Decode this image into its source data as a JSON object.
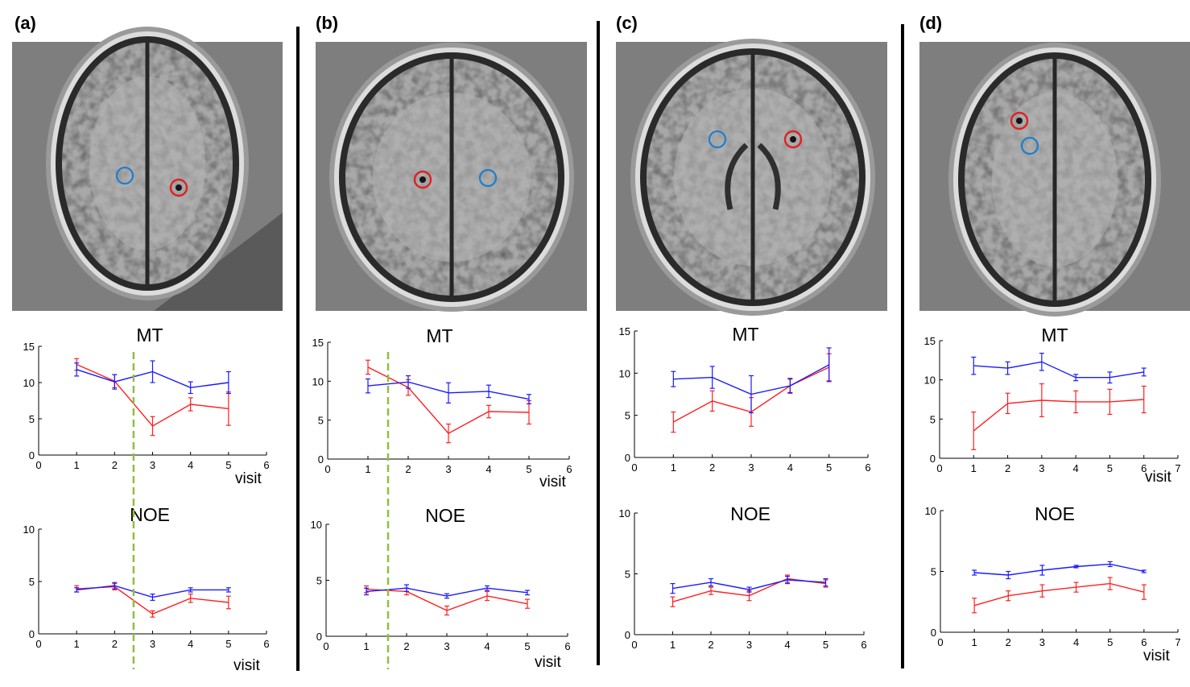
{
  "panels": [
    {
      "label": "(a)"
    },
    {
      "label": "(b)"
    },
    {
      "label": "(c)"
    },
    {
      "label": "(d)"
    }
  ],
  "colors": {
    "series_red": "#ff2020",
    "series_blue": "#1a1aff",
    "onset_line": "#8fbf3f",
    "roi_red": "#e02020",
    "roi_blue": "#1a7fd0"
  },
  "chart_data": [
    {
      "panel": "(a)",
      "type": "line",
      "title": "MT",
      "xlabel": "visit",
      "ylabel": "",
      "xlim": [
        0,
        6
      ],
      "ylim": [
        0,
        15
      ],
      "xticks": [
        0,
        1,
        2,
        3,
        4,
        5,
        6
      ],
      "yticks": [
        0,
        5,
        10,
        15
      ],
      "grid": false,
      "x": [
        1,
        2,
        3,
        4,
        5
      ],
      "series": [
        {
          "color": "red",
          "values": [
            12.5,
            10.2,
            4.0,
            7.0,
            6.4
          ],
          "error": [
            0.8,
            0.9,
            1.3,
            0.9,
            2.3
          ]
        },
        {
          "color": "blue",
          "values": [
            11.8,
            10.1,
            11.5,
            9.3,
            10.0
          ],
          "error": [
            0.9,
            1.0,
            1.5,
            0.8,
            1.5
          ]
        }
      ],
      "vline_x": 2.5
    },
    {
      "panel": "(a)",
      "type": "line",
      "title": "NOE",
      "xlabel": "visit",
      "ylabel": "",
      "xlim": [
        0,
        6
      ],
      "ylim": [
        0,
        10
      ],
      "xticks": [
        0,
        1,
        2,
        3,
        4,
        5,
        6
      ],
      "yticks": [
        0,
        5,
        10
      ],
      "grid": false,
      "x": [
        1,
        2,
        3,
        4,
        5
      ],
      "series": [
        {
          "color": "red",
          "values": [
            4.3,
            4.5,
            1.9,
            3.4,
            3.0
          ],
          "error": [
            0.3,
            0.3,
            0.3,
            0.4,
            0.6
          ]
        },
        {
          "color": "blue",
          "values": [
            4.2,
            4.6,
            3.5,
            4.2,
            4.2
          ],
          "error": [
            0.2,
            0.3,
            0.3,
            0.2,
            0.2
          ]
        }
      ],
      "vline_x": 2.5
    },
    {
      "panel": "(b)",
      "type": "line",
      "title": "MT",
      "xlabel": "visit",
      "ylabel": "",
      "xlim": [
        0,
        6
      ],
      "ylim": [
        0,
        15
      ],
      "xticks": [
        0,
        1,
        2,
        3,
        4,
        5,
        6
      ],
      "yticks": [
        0,
        5,
        10,
        15
      ],
      "grid": false,
      "x": [
        1,
        2,
        3,
        4,
        5
      ],
      "series": [
        {
          "color": "red",
          "values": [
            11.8,
            9.2,
            3.3,
            6.1,
            6.0
          ],
          "error": [
            0.9,
            1.0,
            1.2,
            0.8,
            1.5
          ]
        },
        {
          "color": "blue",
          "values": [
            9.4,
            9.9,
            8.5,
            8.7,
            7.7
          ],
          "error": [
            0.9,
            0.8,
            1.3,
            0.8,
            0.6
          ]
        }
      ],
      "vline_x": 1.5
    },
    {
      "panel": "(b)",
      "type": "line",
      "title": "NOE",
      "xlabel": "visit",
      "ylabel": "",
      "xlim": [
        0,
        6
      ],
      "ylim": [
        0,
        10
      ],
      "xticks": [
        0,
        1,
        2,
        3,
        4,
        5,
        6
      ],
      "yticks": [
        0,
        5,
        10
      ],
      "grid": false,
      "x": [
        1,
        2,
        3,
        4,
        5
      ],
      "series": [
        {
          "color": "red",
          "values": [
            4.2,
            4.0,
            2.3,
            3.6,
            2.9
          ],
          "error": [
            0.3,
            0.3,
            0.4,
            0.4,
            0.4
          ]
        },
        {
          "color": "blue",
          "values": [
            4.0,
            4.3,
            3.6,
            4.3,
            3.9
          ],
          "error": [
            0.3,
            0.3,
            0.2,
            0.2,
            0.2
          ]
        }
      ],
      "vline_x": 1.5
    },
    {
      "panel": "(c)",
      "type": "line",
      "title": "MT",
      "xlabel": "",
      "ylabel": "",
      "xlim": [
        0,
        6
      ],
      "ylim": [
        0,
        15
      ],
      "xticks": [
        0,
        1,
        2,
        3,
        4,
        5,
        6
      ],
      "yticks": [
        0,
        5,
        10,
        15
      ],
      "grid": false,
      "x": [
        1,
        2,
        3,
        4,
        5
      ],
      "series": [
        {
          "color": "red",
          "values": [
            4.2,
            6.7,
            5.4,
            8.5,
            10.7
          ],
          "error": [
            1.2,
            1.2,
            1.7,
            0.9,
            1.6
          ]
        },
        {
          "color": "blue",
          "values": [
            9.3,
            9.5,
            7.5,
            8.5,
            11.0
          ],
          "error": [
            0.9,
            1.3,
            2.2,
            0.8,
            2.0
          ]
        }
      ]
    },
    {
      "panel": "(c)",
      "type": "line",
      "title": "NOE",
      "xlabel": "",
      "ylabel": "",
      "xlim": [
        0,
        6
      ],
      "ylim": [
        0,
        10
      ],
      "xticks": [
        0,
        1,
        2,
        3,
        4,
        5,
        6
      ],
      "yticks": [
        0,
        5,
        10
      ],
      "grid": false,
      "x": [
        1,
        2,
        3,
        4,
        5
      ],
      "series": [
        {
          "color": "red",
          "values": [
            2.7,
            3.6,
            3.2,
            4.6,
            4.2
          ],
          "error": [
            0.4,
            0.3,
            0.4,
            0.3,
            0.3
          ]
        },
        {
          "color": "blue",
          "values": [
            3.8,
            4.3,
            3.7,
            4.5,
            4.3
          ],
          "error": [
            0.4,
            0.3,
            0.2,
            0.3,
            0.3
          ]
        }
      ]
    },
    {
      "panel": "(d)",
      "type": "line",
      "title": "MT",
      "xlabel": "visit",
      "ylabel": "",
      "xlim": [
        0,
        7
      ],
      "ylim": [
        0,
        15
      ],
      "xticks": [
        0,
        1,
        2,
        3,
        4,
        5,
        6,
        7
      ],
      "yticks": [
        0,
        5,
        10,
        15
      ],
      "grid": false,
      "x": [
        1,
        2,
        3,
        4,
        5,
        6
      ],
      "series": [
        {
          "color": "red",
          "values": [
            3.5,
            7.0,
            7.4,
            7.2,
            7.2,
            7.5
          ],
          "error": [
            2.4,
            1.3,
            2.1,
            1.4,
            1.6,
            1.7
          ]
        },
        {
          "color": "blue",
          "values": [
            11.8,
            11.5,
            12.3,
            10.3,
            10.3,
            11.0
          ],
          "error": [
            1.1,
            0.8,
            1.1,
            0.4,
            0.7,
            0.5
          ]
        }
      ]
    },
    {
      "panel": "(d)",
      "type": "line",
      "title": "NOE",
      "xlabel": "visit",
      "ylabel": "",
      "xlim": [
        0,
        7
      ],
      "ylim": [
        0,
        10
      ],
      "xticks": [
        0,
        1,
        2,
        3,
        4,
        5,
        6,
        7
      ],
      "yticks": [
        0,
        5,
        10
      ],
      "grid": false,
      "x": [
        1,
        2,
        3,
        4,
        5,
        6
      ],
      "series": [
        {
          "color": "red",
          "values": [
            2.2,
            3.0,
            3.4,
            3.7,
            4.0,
            3.3
          ],
          "error": [
            0.6,
            0.4,
            0.5,
            0.4,
            0.5,
            0.6
          ]
        },
        {
          "color": "blue",
          "values": [
            4.9,
            4.7,
            5.1,
            5.4,
            5.6,
            5.0
          ],
          "error": [
            0.2,
            0.3,
            0.4,
            0.1,
            0.2,
            0.1
          ]
        }
      ]
    }
  ]
}
